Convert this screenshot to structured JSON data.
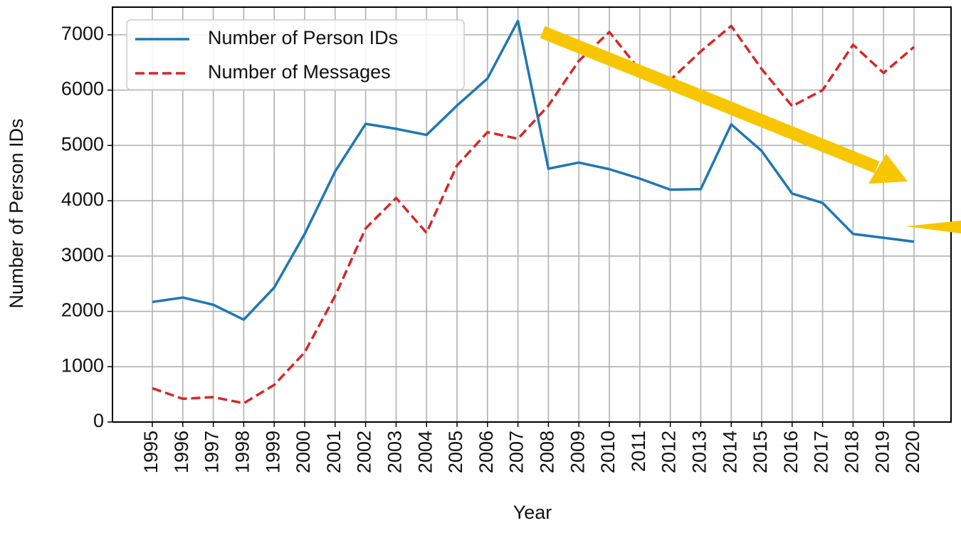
{
  "chart_data": {
    "type": "line",
    "x_label": "Year",
    "y_label": "Number of Person IDs",
    "categories": [
      "1995",
      "1996",
      "1997",
      "1998",
      "1999",
      "2000",
      "2001",
      "2002",
      "2003",
      "2004",
      "2005",
      "2006",
      "2007",
      "2008",
      "2009",
      "2010",
      "2011",
      "2012",
      "2013",
      "2014",
      "2015",
      "2016",
      "2017",
      "2018",
      "2019",
      "2020"
    ],
    "series": [
      {
        "name": "Number of Person IDs",
        "color": "#1f77b4",
        "dash": false,
        "values": [
          2170,
          2250,
          2120,
          1850,
          2430,
          3400,
          4530,
          5390,
          5300,
          5190,
          5720,
          6210,
          7250,
          4580,
          4690,
          4570,
          4400,
          4200,
          4210,
          5380,
          4900,
          4130,
          3960,
          3400,
          3330,
          3260
        ]
      },
      {
        "name": "Number of Messages",
        "color": "#d62728",
        "dash": true,
        "values": [
          610,
          420,
          450,
          340,
          670,
          1260,
          2280,
          3500,
          4050,
          3420,
          4640,
          5240,
          5120,
          5720,
          6530,
          7050,
          6360,
          6180,
          6700,
          7160,
          6380,
          5710,
          6000,
          6820,
          6310,
          6780
        ]
      }
    ],
    "ylim": [
      0,
      7500
    ],
    "yticks": [
      0,
      1000,
      2000,
      3000,
      4000,
      5000,
      6000,
      7000
    ],
    "grid": true,
    "legend": "upper left"
  }
}
